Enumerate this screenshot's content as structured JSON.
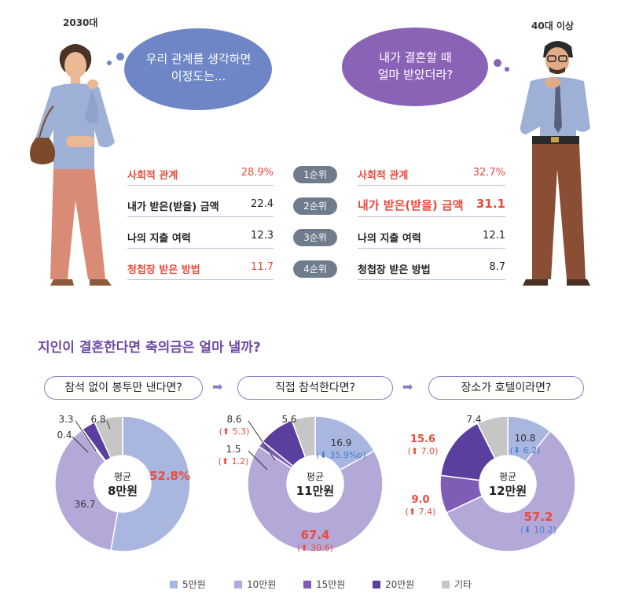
{
  "top": {
    "left_group": "2030대",
    "right_group": "40대 이상",
    "left_bubble": [
      "우리 관계를 생각하면",
      "이정도는..."
    ],
    "right_bubble": [
      "내가 결혼할 때",
      "얼마 받았더라?"
    ],
    "ranks": [
      "1순위",
      "2순위",
      "3순위",
      "4순위"
    ],
    "left_items": [
      {
        "label": "사회적 관계",
        "value": "28.9%",
        "highlight": true
      },
      {
        "label": "내가 받은(받을) 금액",
        "value": "22.4",
        "highlight": false
      },
      {
        "label": "나의 지출 여력",
        "value": "12.3",
        "highlight": false
      },
      {
        "label": "청첩장 받은 방법",
        "value": "11.7",
        "highlight": true
      }
    ],
    "right_items": [
      {
        "label": "사회적 관계",
        "value": "32.7%",
        "highlight": true
      },
      {
        "label": "내가 받은(받을) 금액",
        "value": "31.1",
        "highlight": true
      },
      {
        "label": "나의 지출 여력",
        "value": "12.1",
        "highlight": false
      },
      {
        "label": "청첩장 받은 방법",
        "value": "8.7",
        "highlight": false
      }
    ]
  },
  "section_title": "지인이 결혼한다면 축의금은 얼마 낼까?",
  "avg_label": "평균",
  "legend": [
    {
      "label": "5만원",
      "color": "#a9b6e0"
    },
    {
      "label": "10만원",
      "color": "#b4a8d8"
    },
    {
      "label": "15만원",
      "color": "#7d5db5"
    },
    {
      "label": "20만원",
      "color": "#5a3f9e"
    },
    {
      "label": "기타",
      "color": "#c6c6c6"
    }
  ],
  "chart_data": [
    {
      "type": "pie",
      "title": "참석 없이 봉투만 낸다면?",
      "average": "8만원",
      "categories": [
        "5만원",
        "10만원",
        "15만원",
        "20만원",
        "기타"
      ],
      "values": [
        52.8,
        36.7,
        0.4,
        3.3,
        6.8
      ],
      "labels": [
        "52.8%",
        "36.7",
        "0.4",
        "3.3",
        "6.8"
      ],
      "changes": [
        "",
        "",
        "",
        "",
        ""
      ]
    },
    {
      "type": "pie",
      "title": "직접 참석한다면?",
      "average": "11만원",
      "categories": [
        "5만원",
        "10만원",
        "15만원",
        "20만원",
        "기타"
      ],
      "values": [
        16.9,
        67.4,
        1.5,
        8.6,
        5.6
      ],
      "labels": [
        "16.9",
        "67.4",
        "1.5",
        "8.6",
        "5.6"
      ],
      "changes": [
        "35.9%p",
        "30.6",
        "1.2",
        "5.3",
        ""
      ]
    },
    {
      "type": "pie",
      "title": "장소가 호텔이라면?",
      "average": "12만원",
      "categories": [
        "5만원",
        "10만원",
        "15만원",
        "20만원",
        "기타"
      ],
      "values": [
        10.8,
        57.2,
        9.0,
        15.6,
        7.4
      ],
      "labels": [
        "10.8",
        "57.2",
        "9.0",
        "15.6",
        "7.4"
      ],
      "changes": [
        "6.2",
        "10.2",
        "7.4",
        "7.0",
        ""
      ]
    }
  ]
}
